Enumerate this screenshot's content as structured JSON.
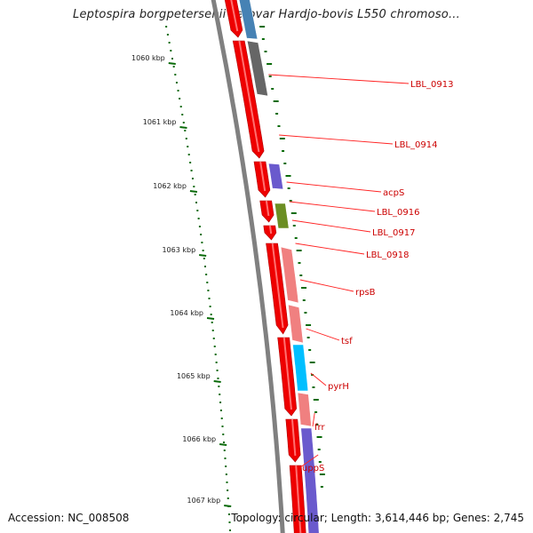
{
  "title": "Leptospira borgpetersenii serovar Hardjo-bovis L550 chromoso...",
  "footer": {
    "accession": "Accession: NC_008508",
    "summary": "Topology: circular; Length: 3,614,446 bp; Genes: 2,745"
  },
  "colors": {
    "backbone": "#808080",
    "forward_cds": "#ee0000",
    "tick": "#0a6b0a",
    "label": "#cc0000",
    "connector": "#ff2222"
  },
  "kbp_ticks": [
    "1060 kbp",
    "1061 kbp",
    "1062 kbp",
    "1063 kbp",
    "1064 kbp",
    "1065 kbp",
    "1066 kbp",
    "1067 kbp"
  ],
  "genes": [
    {
      "label": "LBL_0913",
      "color": "#666666"
    },
    {
      "label": "LBL_0914",
      "color": ""
    },
    {
      "label": "acpS",
      "color": "#6a5acd"
    },
    {
      "label": "LBL_0916",
      "color": ""
    },
    {
      "label": "LBL_0917",
      "color": "#6b8e23"
    },
    {
      "label": "LBL_0918",
      "color": ""
    },
    {
      "label": "rpsB",
      "color": "#f08080"
    },
    {
      "label": "tsf",
      "color": "#f08080"
    },
    {
      "label": "pyrH",
      "color": "#00bfff"
    },
    {
      "label": "frr",
      "color": "#f08080"
    },
    {
      "label": "uppS",
      "color": "#6a5acd"
    }
  ]
}
